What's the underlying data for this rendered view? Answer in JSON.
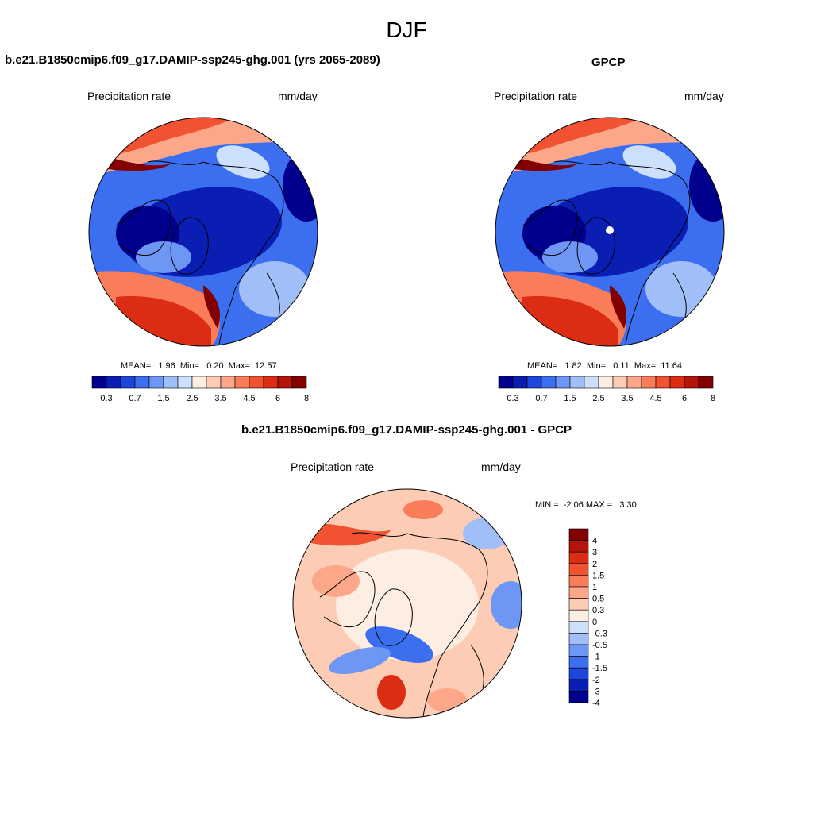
{
  "figure": {
    "title": "DJF",
    "panel_model_title": "b.e21.B1850cmip6.f09_g17.DAMIP-ssp245-ghg.001 (yrs 2065-2089)",
    "panel_obs_title": "GPCP",
    "panel_diff_title": "b.e21.B1850cmip6.f09_g17.DAMIP-ssp245-ghg.001 - GPCP",
    "variable_label": "Precipitation rate",
    "units_label": "mm/day",
    "model_stats": "MEAN=   1.96  Min=   0.20  Max=  12.57",
    "obs_stats": "MEAN=   1.82  Min=   0.11  Max=  11.64",
    "diff_stats": "MIN =  -2.06 MAX =   3.30"
  },
  "chart_data": [
    {
      "type": "heatmap",
      "projection": "north-polar-stereographic",
      "title": "b.e21.B1850cmip6.f09_g17.DAMIP-ssp245-ghg.001 (yrs 2065-2089)",
      "variable": "Precipitation rate",
      "units": "mm/day",
      "stats": {
        "mean": 1.96,
        "min": 0.2,
        "max": 12.57
      },
      "colorbar_ticks": [
        "0.3",
        "0.7",
        "1.5",
        "2.5",
        "3.5",
        "4.5",
        "6",
        "8"
      ],
      "colorbar_colors": [
        "#00008c",
        "#0a1eb4",
        "#1e46dc",
        "#3c6ef0",
        "#6e96f5",
        "#a0bef8",
        "#cde0fb",
        "#fdeee3",
        "#fcccb4",
        "#fca78a",
        "#fa7d5a",
        "#f05232",
        "#dc2d14",
        "#b4140a",
        "#820000"
      ]
    },
    {
      "type": "heatmap",
      "projection": "north-polar-stereographic",
      "title": "GPCP",
      "variable": "Precipitation rate",
      "units": "mm/day",
      "stats": {
        "mean": 1.82,
        "min": 0.11,
        "max": 11.64
      },
      "colorbar_ticks": [
        "0.3",
        "0.7",
        "1.5",
        "2.5",
        "3.5",
        "4.5",
        "6",
        "8"
      ],
      "colorbar_colors": [
        "#00008c",
        "#0a1eb4",
        "#1e46dc",
        "#3c6ef0",
        "#6e96f5",
        "#a0bef8",
        "#cde0fb",
        "#fdeee3",
        "#fcccb4",
        "#fca78a",
        "#fa7d5a",
        "#f05232",
        "#dc2d14",
        "#b4140a",
        "#820000"
      ]
    },
    {
      "type": "heatmap",
      "projection": "north-polar-stereographic",
      "title": "b.e21.B1850cmip6.f09_g17.DAMIP-ssp245-ghg.001 - GPCP",
      "variable": "Precipitation rate",
      "units": "mm/day",
      "stats": {
        "min": -2.06,
        "max": 3.3
      },
      "colorbar_ticks": [
        "4",
        "3",
        "2",
        "1.5",
        "1",
        "0.5",
        "0.3",
        "0",
        "-0.3",
        "-0.5",
        "-1",
        "-1.5",
        "-2",
        "-3",
        "-4"
      ],
      "colorbar_colors": [
        "#820000",
        "#b4140a",
        "#dc2d14",
        "#f05232",
        "#fa7d5a",
        "#fca78a",
        "#fcccb4",
        "#fdeee3",
        "#cde0fb",
        "#a0bef8",
        "#6e96f5",
        "#3c6ef0",
        "#1e46dc",
        "#0a1eb4",
        "#00008c"
      ]
    }
  ]
}
